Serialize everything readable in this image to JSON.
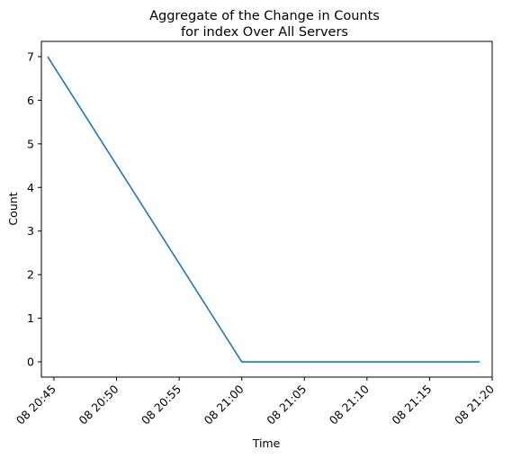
{
  "chart_data": {
    "type": "line",
    "title_lines": [
      "Aggregate of the Change in Counts",
      "for index Over All Servers"
    ],
    "xlabel": "Time",
    "ylabel": "Count",
    "x_ticks": [
      "08 20:45",
      "08 20:50",
      "08 20:55",
      "08 21:00",
      "08 21:05",
      "08 21:10",
      "08 21:15",
      "08 21:20"
    ],
    "y_ticks": [
      "0",
      "1",
      "2",
      "3",
      "4",
      "5",
      "6",
      "7"
    ],
    "ylim": [
      -0.35,
      7.35
    ],
    "xlim": [
      "08 20:44",
      "08 21:20"
    ],
    "grid": false,
    "series": [
      {
        "color": "#1f77b4",
        "points": [
          {
            "x": "08 20:44.5",
            "y": 7
          },
          {
            "x": "08 21:00",
            "y": 0
          },
          {
            "x": "08 21:19",
            "y": 0
          }
        ]
      }
    ]
  }
}
